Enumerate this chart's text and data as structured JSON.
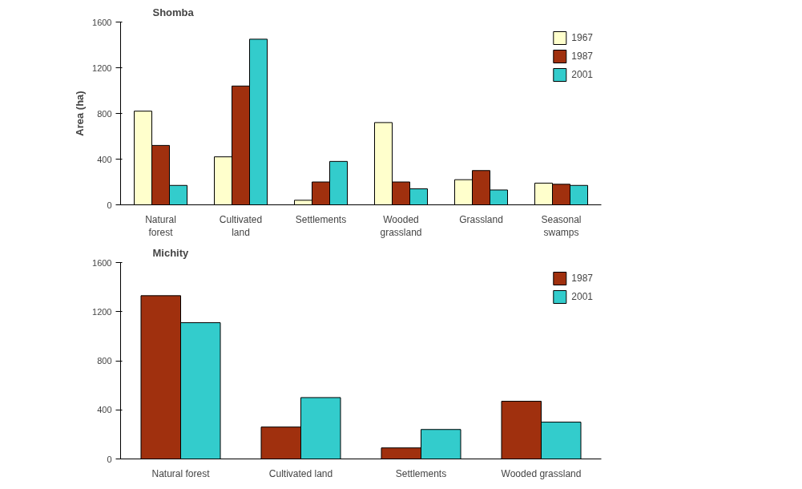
{
  "chart_data": [
    {
      "type": "bar",
      "title": "Shomba",
      "ylabel": "Area (ha)",
      "categories": [
        "Natural forest",
        "Cultivated land",
        "Settlements",
        "Wooded grassland",
        "Grassland",
        "Seasonal swamps"
      ],
      "series": [
        {
          "name": "1967",
          "color": "#ffffcc",
          "values": [
            820,
            420,
            40,
            720,
            220,
            190
          ]
        },
        {
          "name": "1987",
          "color": "#a0300e",
          "values": [
            520,
            1040,
            200,
            200,
            300,
            180
          ]
        },
        {
          "name": "2001",
          "color": "#33cccc",
          "values": [
            170,
            1450,
            380,
            140,
            130,
            170
          ]
        }
      ],
      "ylim": [
        0,
        1600
      ],
      "yticks": [
        0,
        400,
        800,
        1200,
        1600
      ],
      "grid": false,
      "legend": "top right"
    },
    {
      "type": "bar",
      "title": "Michity",
      "categories": [
        "Natural forest",
        "Cultivated land",
        "Settlements",
        "Wooded grassland"
      ],
      "series": [
        {
          "name": "1987",
          "color": "#a0300e",
          "values": [
            1330,
            260,
            90,
            470
          ]
        },
        {
          "name": "2001",
          "color": "#33cccc",
          "values": [
            1110,
            500,
            240,
            300
          ]
        }
      ],
      "ylim": [
        0,
        1600
      ],
      "yticks": [
        0,
        400,
        800,
        1200,
        1600
      ],
      "grid": false,
      "legend": "top right"
    }
  ]
}
